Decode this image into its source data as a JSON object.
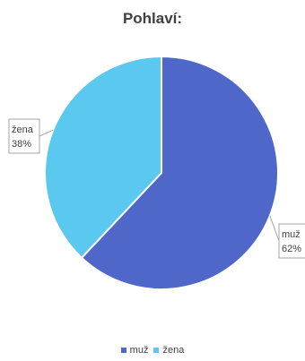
{
  "chart_data": {
    "type": "pie",
    "title": "Pohlaví:",
    "categories": [
      "muž",
      "žena"
    ],
    "values": [
      62,
      38
    ],
    "data_labels": [
      {
        "category": "muž",
        "percent": "62%"
      },
      {
        "category": "žena",
        "percent": "38%"
      }
    ],
    "colors": [
      "#4F67C9",
      "#5BC8F0"
    ],
    "legend_placement": "bottom",
    "legend": [
      {
        "label": "muž",
        "color": "#4F67C9"
      },
      {
        "label": "žena",
        "color": "#5BC8F0"
      }
    ]
  }
}
